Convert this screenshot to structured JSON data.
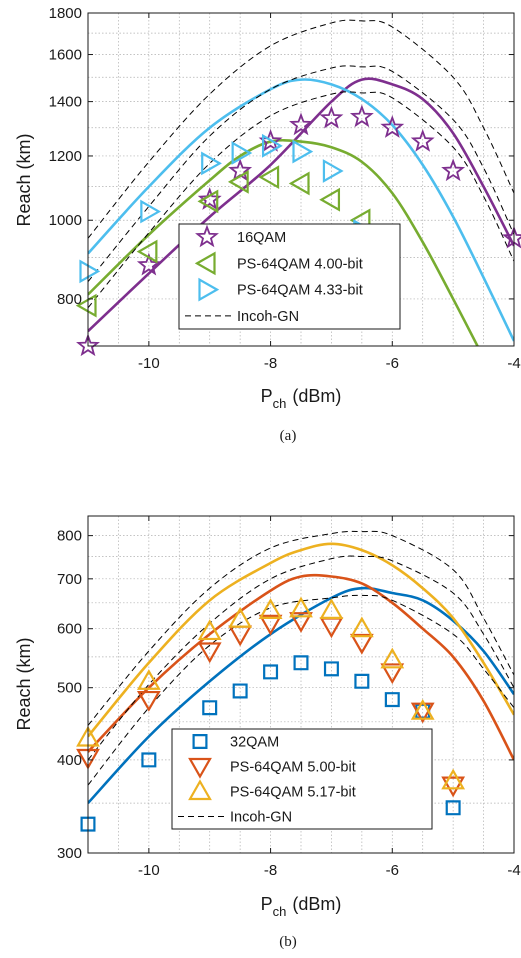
{
  "colors": {
    "purple": "#7e2f8e",
    "green": "#77ac30",
    "cyan": "#4dbeee",
    "blue": "#0072bd",
    "orange": "#d95319",
    "yellow": "#edb120",
    "black": "#000000",
    "grid": "#b0b0b0"
  },
  "chart_data": [
    {
      "type": "line",
      "caption": "(a)",
      "xlabel": "P",
      "xlabel_sub": "ch",
      "xlabel_unit": "(dBm)",
      "ylabel": "Reach (km)",
      "xlim": [
        -11,
        -4
      ],
      "ylim": [
        700,
        1800
      ],
      "yscale": "log",
      "xticks": [
        -10,
        -8,
        -6,
        -4
      ],
      "xtick_labels": [
        "-10",
        "-8",
        "-6",
        "-4"
      ],
      "yticks": [
        800,
        1000,
        1200,
        1400,
        1600,
        1800
      ],
      "ytick_labels": [
        "800",
        "1000",
        "1200",
        "1400",
        "1600",
        "1800"
      ],
      "grid": true,
      "legend_position": "lower-center",
      "legend": [
        {
          "label": "16QAM",
          "marker": "star",
          "color": "#7e2f8e"
        },
        {
          "label": "PS-64QAM 4.00-bit",
          "marker": "triangle-left",
          "color": "#77ac30"
        },
        {
          "label": "PS-64QAM 4.33-bit",
          "marker": "triangle-right",
          "color": "#4dbeee"
        },
        {
          "label": "Incoh-GN",
          "marker": "dash",
          "color": "#000000"
        }
      ],
      "markers": [
        {
          "shape": "star",
          "color": "#7e2f8e",
          "x": [
            -11,
            -10,
            -9,
            -8.5,
            -8,
            -7.5,
            -7,
            -6.5,
            -6,
            -5.5,
            -5,
            -4
          ],
          "y": [
            700,
            880,
            1060,
            1150,
            1250,
            1310,
            1335,
            1340,
            1300,
            1250,
            1150,
            950
          ]
        },
        {
          "shape": "triangle-left",
          "color": "#77ac30",
          "x": [
            -11,
            -10,
            -9,
            -8.5,
            -8,
            -7.5,
            -7,
            -6.5
          ],
          "y": [
            785,
            915,
            1055,
            1115,
            1130,
            1110,
            1060,
            1000
          ]
        },
        {
          "shape": "triangle-right",
          "color": "#4dbeee",
          "x": [
            -11,
            -10,
            -9,
            -8.5,
            -8,
            -7.5,
            -7,
            -6.5
          ],
          "y": [
            865,
            1025,
            1175,
            1210,
            1235,
            1215,
            1150,
            970
          ]
        }
      ],
      "lines": [
        {
          "color": "#7e2f8e",
          "dash": false,
          "x": [
            -11,
            -10,
            -9,
            -8,
            -7,
            -6.5,
            -6,
            -5.5,
            -5,
            -4.5,
            -4
          ],
          "y": [
            730,
            860,
            1010,
            1170,
            1400,
            1490,
            1470,
            1410,
            1280,
            1100,
            930
          ]
        },
        {
          "color": "#77ac30",
          "dash": false,
          "x": [
            -11,
            -10,
            -9,
            -8.5,
            -8,
            -7.5,
            -7,
            -6.5,
            -6,
            -5.5,
            -5,
            -4.6
          ],
          "y": [
            810,
            960,
            1120,
            1200,
            1250,
            1250,
            1230,
            1180,
            1080,
            940,
            800,
            700
          ]
        },
        {
          "color": "#4dbeee",
          "dash": false,
          "x": [
            -11,
            -10,
            -9,
            -8,
            -7.5,
            -7,
            -6.5,
            -6,
            -5.5,
            -5,
            -4.5,
            -4
          ],
          "y": [
            910,
            1100,
            1300,
            1450,
            1490,
            1470,
            1410,
            1310,
            1170,
            1010,
            850,
            710
          ]
        },
        {
          "color": "#000000",
          "dash": true,
          "x": [
            -11,
            -10,
            -9,
            -8,
            -7,
            -6.5,
            -6,
            -5,
            -4.5,
            -4
          ],
          "y": [
            950,
            1180,
            1430,
            1640,
            1750,
            1760,
            1730,
            1500,
            1300,
            1080
          ]
        },
        {
          "color": "#000000",
          "dash": true,
          "x": [
            -11,
            -10,
            -9,
            -8,
            -7,
            -6.5,
            -6,
            -5,
            -4.5,
            -4
          ],
          "y": [
            840,
            1040,
            1270,
            1450,
            1540,
            1545,
            1525,
            1330,
            1160,
            960
          ]
        },
        {
          "color": "#000000",
          "dash": true,
          "x": [
            -11,
            -10,
            -9,
            -8,
            -7,
            -6.5,
            -6,
            -5,
            -4.5,
            -4
          ],
          "y": [
            780,
            965,
            1175,
            1345,
            1430,
            1435,
            1415,
            1230,
            1070,
            890
          ]
        }
      ]
    },
    {
      "type": "line",
      "caption": "(b)",
      "xlabel": "P",
      "xlabel_sub": "ch",
      "xlabel_unit": "(dBm)",
      "ylabel": "Reach (km)",
      "xlim": [
        -11,
        -4
      ],
      "ylim": [
        300,
        850
      ],
      "yscale": "log",
      "xticks": [
        -10,
        -8,
        -6,
        -4
      ],
      "xtick_labels": [
        "-10",
        "-8",
        "-6",
        "-4"
      ],
      "yticks": [
        300,
        400,
        500,
        600,
        700,
        800
      ],
      "ytick_labels": [
        "300",
        "400",
        "500",
        "600",
        "700",
        "800"
      ],
      "grid": true,
      "legend_position": "lower-center",
      "legend": [
        {
          "label": "32QAM",
          "marker": "square",
          "color": "#0072bd"
        },
        {
          "label": "PS-64QAM 5.00-bit",
          "marker": "triangle-down",
          "color": "#d95319"
        },
        {
          "label": "PS-64QAM 5.17-bit",
          "marker": "triangle-up",
          "color": "#edb120"
        },
        {
          "label": "Incoh-GN",
          "marker": "dash",
          "color": "#000000"
        }
      ],
      "markers": [
        {
          "shape": "square",
          "color": "#0072bd",
          "x": [
            -11,
            -10,
            -9,
            -8.5,
            -8,
            -7.5,
            -7,
            -6.5,
            -6,
            -5.5,
            -5
          ],
          "y": [
            328,
            400,
            470,
            495,
            525,
            540,
            530,
            510,
            482,
            465,
            345
          ]
        },
        {
          "shape": "triangle-down",
          "color": "#d95319",
          "x": [
            -11,
            -10,
            -9,
            -8.5,
            -8,
            -7.5,
            -7,
            -6.5,
            -6,
            -5.5,
            -5
          ],
          "y": [
            403,
            482,
            560,
            590,
            610,
            615,
            605,
            575,
            525,
            465,
            370
          ]
        },
        {
          "shape": "triangle-up",
          "color": "#edb120",
          "x": [
            -11,
            -10,
            -9,
            -8.5,
            -8,
            -7.5,
            -7,
            -6.5,
            -6,
            -5.5,
            -5
          ],
          "y": [
            428,
            510,
            595,
            618,
            635,
            638,
            635,
            600,
            545,
            465,
            375
          ]
        }
      ],
      "lines": [
        {
          "color": "#0072bd",
          "dash": false,
          "x": [
            -11,
            -10,
            -9,
            -8,
            -7,
            -6.5,
            -6,
            -5.5,
            -5,
            -4.5,
            -4
          ],
          "y": [
            350,
            430,
            510,
            590,
            660,
            680,
            670,
            655,
            615,
            560,
            490
          ]
        },
        {
          "color": "#d95319",
          "dash": false,
          "x": [
            -11,
            -10,
            -9,
            -8,
            -7.5,
            -7,
            -6.5,
            -6,
            -5.5,
            -5,
            -4.5,
            -4
          ],
          "y": [
            410,
            500,
            590,
            675,
            705,
            705,
            690,
            650,
            600,
            550,
            480,
            400
          ]
        },
        {
          "color": "#edb120",
          "dash": false,
          "x": [
            -11,
            -10,
            -9,
            -8,
            -7.5,
            -7,
            -6.5,
            -6,
            -5.5,
            -5,
            -4.5,
            -4
          ],
          "y": [
            430,
            540,
            655,
            735,
            765,
            780,
            765,
            730,
            680,
            620,
            540,
            460
          ]
        },
        {
          "color": "#000000",
          "dash": true,
          "x": [
            -11,
            -10,
            -9,
            -8,
            -7,
            -6.5,
            -6,
            -5,
            -4.5,
            -4
          ],
          "y": [
            445,
            560,
            680,
            770,
            805,
            810,
            800,
            720,
            620,
            520
          ]
        },
        {
          "color": "#000000",
          "dash": true,
          "x": [
            -11,
            -10,
            -9,
            -8,
            -7,
            -6.5,
            -6,
            -5,
            -4.5,
            -4
          ],
          "y": [
            400,
            505,
            610,
            700,
            745,
            750,
            740,
            670,
            590,
            500
          ]
        },
        {
          "color": "#000000",
          "dash": true,
          "x": [
            -11,
            -10,
            -9,
            -8,
            -7,
            -6.5,
            -6,
            -5,
            -4.5,
            -4
          ],
          "y": [
            370,
            470,
            570,
            640,
            660,
            665,
            655,
            590,
            530,
            470
          ]
        }
      ]
    }
  ]
}
